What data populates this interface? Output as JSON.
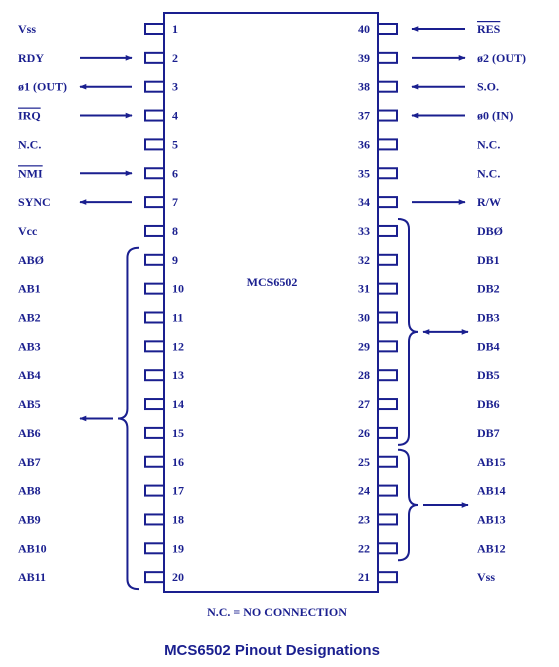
{
  "chip_name": "MCS6502",
  "footnote": "N.C. = NO CONNECTION",
  "caption": "MCS6502 Pinout Designations",
  "colors": {
    "ink": "#1a1f8f",
    "background": "#ffffff"
  },
  "left_pins": [
    {
      "num": "1",
      "label": "Vss",
      "arrow": "none"
    },
    {
      "num": "2",
      "label": "RDY",
      "arrow": "in"
    },
    {
      "num": "3",
      "label": "ø1 (OUT)",
      "arrow": "out"
    },
    {
      "num": "4",
      "label": "IRQ",
      "arrow": "in",
      "overline": true
    },
    {
      "num": "5",
      "label": "N.C.",
      "arrow": "none"
    },
    {
      "num": "6",
      "label": "NMI",
      "arrow": "in",
      "overline": true
    },
    {
      "num": "7",
      "label": "SYNC",
      "arrow": "out"
    },
    {
      "num": "8",
      "label": "Vcc",
      "arrow": "none"
    },
    {
      "num": "9",
      "label": "ABØ",
      "arrow": "none"
    },
    {
      "num": "10",
      "label": "AB1",
      "arrow": "none"
    },
    {
      "num": "11",
      "label": "AB2",
      "arrow": "none"
    },
    {
      "num": "12",
      "label": "AB3",
      "arrow": "none"
    },
    {
      "num": "13",
      "label": "AB4",
      "arrow": "none"
    },
    {
      "num": "14",
      "label": "AB5",
      "arrow": "none"
    },
    {
      "num": "15",
      "label": "AB6",
      "arrow": "none"
    },
    {
      "num": "16",
      "label": "AB7",
      "arrow": "none"
    },
    {
      "num": "17",
      "label": "AB8",
      "arrow": "none"
    },
    {
      "num": "18",
      "label": "AB9",
      "arrow": "none"
    },
    {
      "num": "19",
      "label": "AB10",
      "arrow": "none"
    },
    {
      "num": "20",
      "label": "AB11",
      "arrow": "none"
    }
  ],
  "right_pins": [
    {
      "num": "40",
      "label": "RES",
      "arrow": "in",
      "overline": true
    },
    {
      "num": "39",
      "label": "ø2 (OUT)",
      "arrow": "out"
    },
    {
      "num": "38",
      "label": "S.O.",
      "arrow": "in"
    },
    {
      "num": "37",
      "label": "ø0 (IN)",
      "arrow": "in"
    },
    {
      "num": "36",
      "label": "N.C.",
      "arrow": "none"
    },
    {
      "num": "35",
      "label": "N.C.",
      "arrow": "none"
    },
    {
      "num": "34",
      "label": "R/W",
      "arrow": "out"
    },
    {
      "num": "33",
      "label": "DBØ",
      "arrow": "none"
    },
    {
      "num": "32",
      "label": "DB1",
      "arrow": "none"
    },
    {
      "num": "31",
      "label": "DB2",
      "arrow": "none"
    },
    {
      "num": "30",
      "label": "DB3",
      "arrow": "none"
    },
    {
      "num": "29",
      "label": "DB4",
      "arrow": "none"
    },
    {
      "num": "28",
      "label": "DB5",
      "arrow": "none"
    },
    {
      "num": "27",
      "label": "DB6",
      "arrow": "none"
    },
    {
      "num": "26",
      "label": "DB7",
      "arrow": "none"
    },
    {
      "num": "25",
      "label": "AB15",
      "arrow": "none"
    },
    {
      "num": "24",
      "label": "AB14",
      "arrow": "none"
    },
    {
      "num": "23",
      "label": "AB13",
      "arrow": "none"
    },
    {
      "num": "22",
      "label": "AB12",
      "arrow": "none"
    },
    {
      "num": "21",
      "label": "Vss",
      "arrow": "none"
    }
  ],
  "groups": [
    {
      "id": "address-bus-low",
      "side": "left",
      "from_index": 8,
      "to_index": 19,
      "arrow": "out"
    },
    {
      "id": "data-bus",
      "side": "right",
      "from_index": 7,
      "to_index": 14,
      "arrow": "both"
    },
    {
      "id": "address-bus-high",
      "side": "right",
      "from_index": 15,
      "to_index": 18,
      "arrow": "out"
    }
  ]
}
